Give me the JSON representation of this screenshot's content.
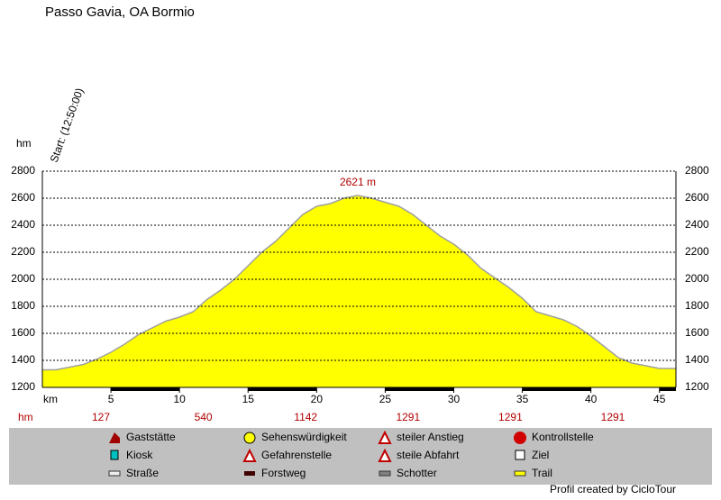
{
  "chart_data": {
    "type": "area",
    "title": "Passo Gavia, OA Bormio",
    "start_label": "Start: (12:50:00)",
    "y_label": "hm",
    "x_label": "km",
    "peak_label": "2621 m",
    "hm_row_label": "hm",
    "hm_row": [
      "127",
      "540",
      "1142",
      "1291",
      "1291",
      "1291"
    ],
    "x": [
      0,
      1,
      2,
      3,
      4,
      5,
      6,
      7,
      8,
      9,
      10,
      11,
      12,
      13,
      14,
      15,
      16,
      17,
      18,
      19,
      20,
      21,
      22,
      23,
      24,
      25,
      26,
      27,
      28,
      29,
      30,
      31,
      32,
      33,
      34,
      35,
      36,
      37,
      38,
      39,
      40,
      41,
      42,
      43,
      44,
      45,
      46.2
    ],
    "values": [
      1330,
      1330,
      1350,
      1370,
      1410,
      1460,
      1520,
      1590,
      1640,
      1690,
      1720,
      1760,
      1850,
      1920,
      2000,
      2100,
      2200,
      2280,
      2380,
      2480,
      2540,
      2560,
      2600,
      2621,
      2600,
      2570,
      2540,
      2480,
      2400,
      2320,
      2260,
      2180,
      2080,
      2010,
      1940,
      1860,
      1760,
      1730,
      1700,
      1650,
      1580,
      1500,
      1420,
      1380,
      1360,
      1340,
      1340
    ],
    "color": "#ffff00",
    "line_color": "#a0a0a0",
    "xlim": [
      0,
      46.2
    ],
    "xticks": [
      5,
      10,
      15,
      20,
      25,
      30,
      35,
      40,
      45
    ],
    "ylim": [
      1200,
      2800
    ],
    "yticks": [
      1200,
      1400,
      1600,
      1800,
      2000,
      2200,
      2400,
      2600,
      2800
    ],
    "grid": true,
    "legend": [
      "Gaststätte",
      "Sehenswürdigkeit",
      "steiler Anstieg",
      "Kontrollstelle",
      "Kiosk",
      "Gefahrenstelle",
      "steile Abfahrt",
      "Ziel",
      "Straße",
      "Forstweg",
      "Schotter",
      "Trail"
    ],
    "footer": "Profil created by CicloTour"
  }
}
